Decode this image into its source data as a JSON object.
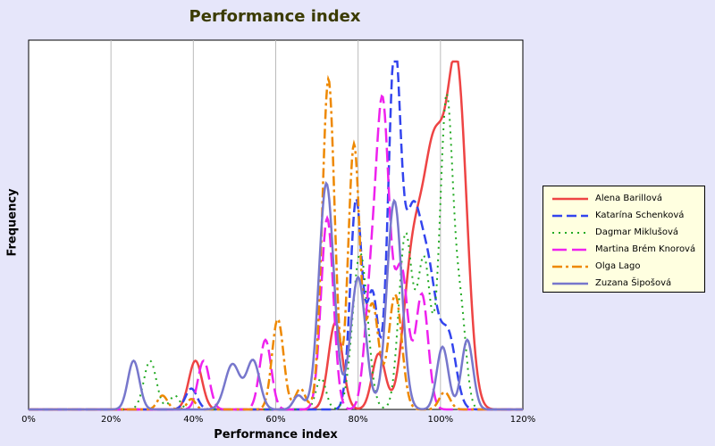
{
  "chart_data": {
    "type": "area",
    "title": "Performance index",
    "xlabel": "Performance index",
    "ylabel": "Frequency",
    "xlim": [
      0,
      120
    ],
    "ylim": [
      0,
      1.0
    ],
    "x_ticks": [
      "0%",
      "20%",
      "40%",
      "60%",
      "80%",
      "100%",
      "120%"
    ],
    "x_tick_values": [
      0,
      20,
      40,
      60,
      80,
      100,
      120
    ],
    "grid": "vertical",
    "legend_position": "right",
    "series": [
      {
        "name": "Alena Barillová",
        "color": "#ee4444",
        "dash": "solid",
        "peaks": [
          [
            40.5,
            0.14,
            1.6
          ],
          [
            74.5,
            0.25,
            1.7
          ],
          [
            85.0,
            0.16,
            1.6
          ],
          [
            93.0,
            0.35,
            2.2
          ],
          [
            98.5,
            0.75,
            3.0
          ],
          [
            104.2,
            0.88,
            2.3
          ]
        ]
      },
      {
        "name": "Katarína Schenková",
        "color": "#3344ee",
        "dash": "dashed",
        "peaks": [
          [
            39.5,
            0.06,
            1.4
          ],
          [
            79.5,
            0.6,
            1.4
          ],
          [
            83.5,
            0.33,
            1.4
          ],
          [
            88.8,
            1.0,
            1.5
          ],
          [
            93.0,
            0.5,
            2.0
          ],
          [
            97.0,
            0.38,
            2.2
          ],
          [
            102.0,
            0.2,
            1.8
          ]
        ]
      },
      {
        "name": "Dagmar Miklušová",
        "color": "#22aa22",
        "dash": "dotted",
        "peaks": [
          [
            29.5,
            0.14,
            1.5
          ],
          [
            35.5,
            0.04,
            1.2
          ],
          [
            71.0,
            0.09,
            1.2
          ],
          [
            80.5,
            0.45,
            1.8
          ],
          [
            91.5,
            0.5,
            1.6
          ],
          [
            96.0,
            0.43,
            1.6
          ],
          [
            101.5,
            0.9,
            1.6
          ],
          [
            105.0,
            0.25,
            1.3
          ]
        ]
      },
      {
        "name": "Martina Brém Knorová",
        "color": "#ee22ee",
        "dash": "dashed-long",
        "peaks": [
          [
            42.5,
            0.14,
            1.4
          ],
          [
            57.5,
            0.2,
            1.4
          ],
          [
            72.5,
            0.55,
            1.5
          ],
          [
            83.0,
            0.3,
            1.5
          ],
          [
            86.0,
            0.85,
            1.6
          ],
          [
            90.5,
            0.4,
            1.6
          ],
          [
            95.5,
            0.33,
            1.5
          ]
        ]
      },
      {
        "name": "Olga Lago",
        "color": "#ee8800",
        "dash": "dashdot",
        "peaks": [
          [
            32.5,
            0.04,
            1.2
          ],
          [
            39.5,
            0.03,
            1.0
          ],
          [
            60.5,
            0.26,
            1.4
          ],
          [
            66.0,
            0.06,
            1.2
          ],
          [
            72.8,
            0.95,
            1.5
          ],
          [
            79.0,
            0.76,
            1.4
          ],
          [
            83.5,
            0.3,
            1.5
          ],
          [
            89.0,
            0.33,
            1.6
          ],
          [
            101.0,
            0.05,
            1.3
          ]
        ]
      },
      {
        "name": "Zuzana Šipošová",
        "color": "#7777cc",
        "dash": "solid",
        "peaks": [
          [
            25.5,
            0.14,
            1.4
          ],
          [
            49.5,
            0.13,
            1.8
          ],
          [
            54.5,
            0.14,
            1.6
          ],
          [
            65.5,
            0.04,
            1.2
          ],
          [
            72.3,
            0.65,
            1.8
          ],
          [
            80.0,
            0.38,
            1.8
          ],
          [
            88.8,
            0.6,
            1.8
          ],
          [
            100.5,
            0.18,
            1.4
          ],
          [
            106.5,
            0.2,
            1.4
          ]
        ]
      }
    ]
  }
}
